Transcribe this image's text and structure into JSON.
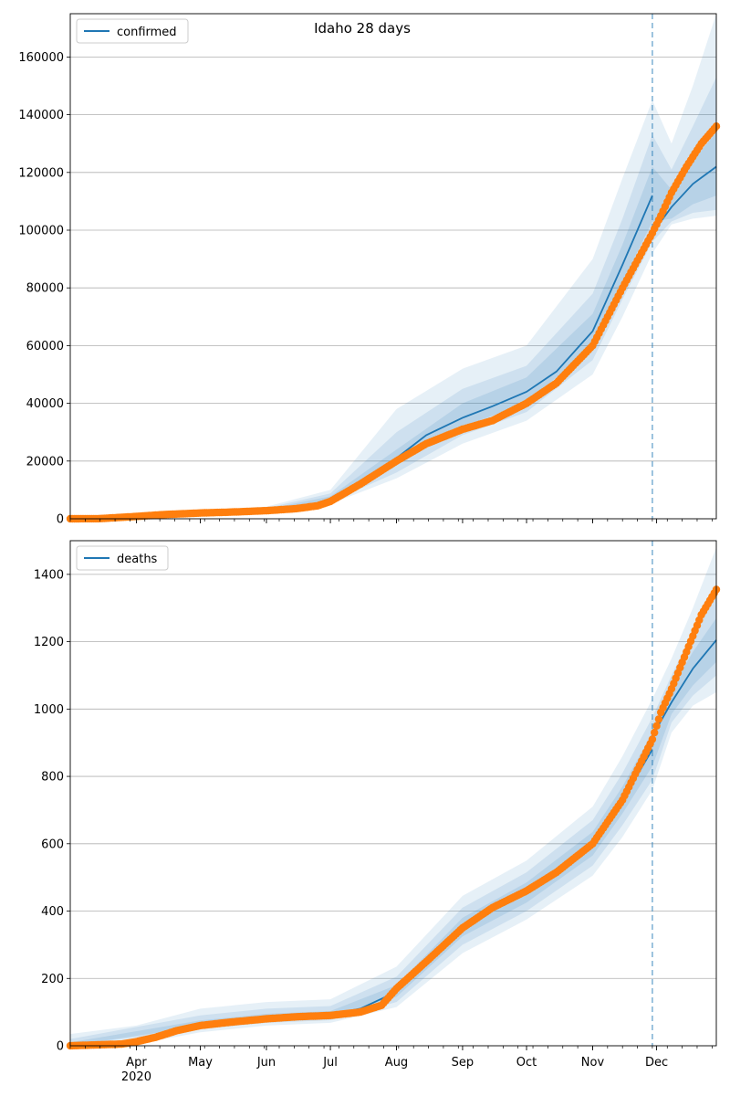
{
  "figure_title": "Idaho 28 days",
  "colors": {
    "model_line": "#1f77b4",
    "band": "#1f77b4",
    "observed": "#ff7f0e",
    "grid": "#b0b0b0",
    "forecast_marker": "#1f77b4"
  },
  "x_axis": {
    "ticks": [
      "Apr",
      "May",
      "Jun",
      "Jul",
      "Aug",
      "Sep",
      "Oct",
      "Nov",
      "Dec"
    ],
    "year_label": "2020",
    "range": [
      "2020-03-01",
      "2020-12-29"
    ]
  },
  "forecast_start": "2020-11-29",
  "chart_data": [
    {
      "type": "line",
      "legend": "confirmed",
      "legend_position": "upper-left",
      "grid": "horizontal",
      "ylim": [
        0,
        175000
      ],
      "yticks": [
        "0",
        "20000",
        "40000",
        "60000",
        "80000",
        "100000",
        "120000",
        "140000",
        "160000"
      ],
      "model_median": [
        [
          "2020-03-01",
          0
        ],
        [
          "2020-04-01",
          800
        ],
        [
          "2020-05-01",
          2000
        ],
        [
          "2020-06-01",
          3000
        ],
        [
          "2020-06-20",
          4200
        ],
        [
          "2020-07-01",
          7000
        ],
        [
          "2020-07-15",
          13000
        ],
        [
          "2020-08-01",
          21000
        ],
        [
          "2020-08-15",
          29000
        ],
        [
          "2020-09-01",
          35000
        ],
        [
          "2020-09-15",
          39000
        ],
        [
          "2020-10-01",
          44000
        ],
        [
          "2020-10-15",
          51000
        ],
        [
          "2020-11-01",
          65000
        ],
        [
          "2020-11-15",
          88000
        ],
        [
          "2020-11-29",
          112000
        ]
      ],
      "forecast_median": [
        [
          "2020-11-29",
          99000
        ],
        [
          "2020-12-08",
          108000
        ],
        [
          "2020-12-18",
          116000
        ],
        [
          "2020-12-29",
          122000
        ]
      ],
      "band_inner": [
        [
          "2020-06-01",
          2800,
          3300
        ],
        [
          "2020-07-01",
          6500,
          7800
        ],
        [
          "2020-08-01",
          19000,
          24000
        ],
        [
          "2020-09-01",
          32000,
          40000
        ],
        [
          "2020-10-01",
          40000,
          49000
        ],
        [
          "2020-11-01",
          60000,
          71000
        ],
        [
          "2020-11-15",
          82000,
          95000
        ],
        [
          "2020-11-29",
          103000,
          122000
        ],
        [
          "2020-12-08",
          104000,
          114000
        ],
        [
          "2020-12-18",
          109000,
          124000
        ],
        [
          "2020-12-29",
          112000,
          134000
        ]
      ],
      "band_mid": [
        [
          "2020-06-01",
          2600,
          3700
        ],
        [
          "2020-07-01",
          5800,
          8800
        ],
        [
          "2020-08-01",
          16000,
          30000
        ],
        [
          "2020-09-01",
          29000,
          45000
        ],
        [
          "2020-10-01",
          37000,
          53000
        ],
        [
          "2020-11-01",
          55000,
          78000
        ],
        [
          "2020-11-15",
          76000,
          104000
        ],
        [
          "2020-11-29",
          96000,
          133000
        ],
        [
          "2020-12-08",
          103000,
          121000
        ],
        [
          "2020-12-18",
          106000,
          136000
        ],
        [
          "2020-12-29",
          107000,
          153000
        ]
      ],
      "band_outer": [
        [
          "2020-03-01",
          0,
          200
        ],
        [
          "2020-04-01",
          500,
          1500
        ],
        [
          "2020-05-01",
          1600,
          2800
        ],
        [
          "2020-06-01",
          2400,
          4200
        ],
        [
          "2020-07-01",
          5200,
          10000
        ],
        [
          "2020-08-01",
          14000,
          38000
        ],
        [
          "2020-09-01",
          26000,
          52000
        ],
        [
          "2020-10-01",
          34000,
          60000
        ],
        [
          "2020-11-01",
          50000,
          90000
        ],
        [
          "2020-11-15",
          70000,
          118000
        ],
        [
          "2020-11-29",
          92000,
          145000
        ],
        [
          "2020-12-08",
          102000,
          130000
        ],
        [
          "2020-12-18",
          104000,
          150000
        ],
        [
          "2020-12-29",
          105000,
          175000
        ]
      ],
      "observed": [
        [
          "2020-03-01",
          0
        ],
        [
          "2020-03-15",
          50
        ],
        [
          "2020-04-01",
          800
        ],
        [
          "2020-04-15",
          1500
        ],
        [
          "2020-05-01",
          2000
        ],
        [
          "2020-05-15",
          2300
        ],
        [
          "2020-06-01",
          2800
        ],
        [
          "2020-06-15",
          3500
        ],
        [
          "2020-06-25",
          4500
        ],
        [
          "2020-07-01",
          6000
        ],
        [
          "2020-07-15",
          12000
        ],
        [
          "2020-08-01",
          20000
        ],
        [
          "2020-08-15",
          26000
        ],
        [
          "2020-09-01",
          31000
        ],
        [
          "2020-09-15",
          34000
        ],
        [
          "2020-10-01",
          40000
        ],
        [
          "2020-10-15",
          47000
        ],
        [
          "2020-11-01",
          60000
        ],
        [
          "2020-11-15",
          80000
        ],
        [
          "2020-11-29",
          99000
        ],
        [
          "2020-12-03",
          105000
        ],
        [
          "2020-12-08",
          113000
        ],
        [
          "2020-12-15",
          122000
        ],
        [
          "2020-12-22",
          130000
        ],
        [
          "2020-12-29",
          136000
        ]
      ]
    },
    {
      "type": "line",
      "legend": "deaths",
      "legend_position": "upper-left",
      "grid": "horizontal",
      "ylim": [
        0,
        1500
      ],
      "yticks": [
        "0",
        "200",
        "400",
        "600",
        "800",
        "1000",
        "1200",
        "1400"
      ],
      "model_median": [
        [
          "2020-03-01",
          0
        ],
        [
          "2020-04-01",
          15
        ],
        [
          "2020-04-15",
          40
        ],
        [
          "2020-05-01",
          65
        ],
        [
          "2020-06-01",
          85
        ],
        [
          "2020-07-01",
          93
        ],
        [
          "2020-07-15",
          110
        ],
        [
          "2020-08-01",
          160
        ],
        [
          "2020-08-15",
          250
        ],
        [
          "2020-09-01",
          350
        ],
        [
          "2020-09-15",
          405
        ],
        [
          "2020-10-01",
          455
        ],
        [
          "2020-10-15",
          510
        ],
        [
          "2020-11-01",
          600
        ],
        [
          "2020-11-15",
          730
        ],
        [
          "2020-11-29",
          880
        ]
      ],
      "forecast_median": [
        [
          "2020-11-29",
          920
        ],
        [
          "2020-12-08",
          1020
        ],
        [
          "2020-12-18",
          1120
        ],
        [
          "2020-12-29",
          1205
        ]
      ],
      "band_inner": [
        [
          "2020-03-01",
          0,
          10
        ],
        [
          "2020-05-01",
          58,
          75
        ],
        [
          "2020-06-01",
          78,
          95
        ],
        [
          "2020-07-01",
          85,
          103
        ],
        [
          "2020-08-01",
          145,
          180
        ],
        [
          "2020-09-01",
          325,
          380
        ],
        [
          "2020-10-01",
          425,
          485
        ],
        [
          "2020-11-01",
          565,
          635
        ],
        [
          "2020-11-15",
          690,
          770
        ],
        [
          "2020-11-29",
          830,
          930
        ],
        [
          "2020-12-08",
          985,
          1060
        ],
        [
          "2020-12-18",
          1070,
          1170
        ],
        [
          "2020-12-29",
          1140,
          1270
        ]
      ],
      "band_mid": [
        [
          "2020-03-01",
          0,
          20
        ],
        [
          "2020-05-01",
          50,
          90
        ],
        [
          "2020-06-01",
          68,
          110
        ],
        [
          "2020-07-01",
          76,
          118
        ],
        [
          "2020-08-01",
          130,
          205
        ],
        [
          "2020-09-01",
          300,
          410
        ],
        [
          "2020-10-01",
          400,
          515
        ],
        [
          "2020-11-01",
          535,
          670
        ],
        [
          "2020-11-15",
          655,
          810
        ],
        [
          "2020-11-29",
          790,
          975
        ],
        [
          "2020-12-08",
          960,
          1100
        ],
        [
          "2020-12-18",
          1040,
          1230
        ],
        [
          "2020-12-29",
          1100,
          1360
        ]
      ],
      "band_outer": [
        [
          "2020-03-01",
          0,
          35
        ],
        [
          "2020-04-01",
          5,
          60
        ],
        [
          "2020-05-01",
          40,
          110
        ],
        [
          "2020-06-01",
          60,
          130
        ],
        [
          "2020-07-01",
          68,
          138
        ],
        [
          "2020-08-01",
          115,
          235
        ],
        [
          "2020-09-01",
          275,
          445
        ],
        [
          "2020-10-01",
          375,
          550
        ],
        [
          "2020-11-01",
          505,
          710
        ],
        [
          "2020-11-15",
          620,
          860
        ],
        [
          "2020-11-29",
          760,
          1030
        ],
        [
          "2020-12-08",
          930,
          1150
        ],
        [
          "2020-12-18",
          1010,
          1300
        ],
        [
          "2020-12-29",
          1050,
          1480
        ]
      ],
      "observed": [
        [
          "2020-03-01",
          0
        ],
        [
          "2020-03-25",
          5
        ],
        [
          "2020-04-01",
          12
        ],
        [
          "2020-04-10",
          25
        ],
        [
          "2020-04-20",
          45
        ],
        [
          "2020-05-01",
          60
        ],
        [
          "2020-05-15",
          70
        ],
        [
          "2020-06-01",
          80
        ],
        [
          "2020-06-15",
          86
        ],
        [
          "2020-07-01",
          90
        ],
        [
          "2020-07-15",
          100
        ],
        [
          "2020-07-25",
          120
        ],
        [
          "2020-08-01",
          170
        ],
        [
          "2020-08-15",
          250
        ],
        [
          "2020-09-01",
          350
        ],
        [
          "2020-09-15",
          410
        ],
        [
          "2020-10-01",
          460
        ],
        [
          "2020-10-15",
          515
        ],
        [
          "2020-11-01",
          600
        ],
        [
          "2020-11-15",
          730
        ],
        [
          "2020-11-29",
          910
        ],
        [
          "2020-12-03",
          990
        ],
        [
          "2020-12-08",
          1060
        ],
        [
          "2020-12-15",
          1170
        ],
        [
          "2020-12-22",
          1280
        ],
        [
          "2020-12-29",
          1355
        ]
      ]
    }
  ]
}
